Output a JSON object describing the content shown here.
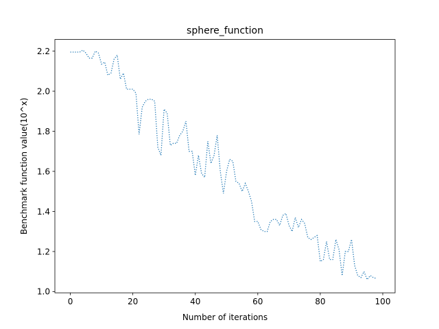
{
  "chart_data": {
    "type": "line",
    "title": "sphere_function",
    "xlabel": "Number of iterations",
    "ylabel": "Benchmark function value(10^x)",
    "xlim": [
      -4.95,
      103.95
    ],
    "ylim": [
      0.994,
      2.258
    ],
    "xticks": [
      0,
      20,
      40,
      60,
      80,
      100
    ],
    "yticks": [
      1.0,
      1.2,
      1.4,
      1.6,
      1.8,
      2.0,
      2.2
    ],
    "ytick_labels": [
      "1.0",
      "1.2",
      "1.4",
      "1.6",
      "1.8",
      "2.0",
      "2.2"
    ],
    "grid": false,
    "legend": "none",
    "line_style": "dotted",
    "color": "#1f77b4",
    "series": [
      {
        "x": [
          0,
          1,
          2,
          3,
          4,
          5,
          6,
          7,
          8,
          9,
          10,
          11,
          12,
          13,
          14,
          15,
          16,
          17,
          18,
          19,
          20,
          21,
          22,
          23,
          24,
          25,
          26,
          27,
          28,
          29,
          30,
          31,
          32,
          33,
          34,
          35,
          36,
          37,
          38,
          39,
          40,
          41,
          42,
          43,
          44,
          45,
          46,
          47,
          48,
          49,
          50,
          51,
          52,
          53,
          54,
          55,
          56,
          57,
          58,
          59,
          60,
          61,
          62,
          63,
          64,
          65,
          66,
          67,
          68,
          69,
          70,
          71,
          72,
          73,
          74,
          75,
          76,
          77,
          78,
          79,
          80,
          81,
          82,
          83,
          84,
          85,
          86,
          87,
          88,
          89,
          90,
          91,
          92,
          93,
          94,
          95,
          96,
          97,
          98
        ],
        "values": [
          2.195,
          2.195,
          2.195,
          2.195,
          2.205,
          2.19,
          2.165,
          2.165,
          2.2,
          2.19,
          2.135,
          2.145,
          2.08,
          2.09,
          2.16,
          2.18,
          2.06,
          2.09,
          2.01,
          2.01,
          2.01,
          1.99,
          1.785,
          1.92,
          1.95,
          1.96,
          1.96,
          1.95,
          1.72,
          1.68,
          1.91,
          1.89,
          1.73,
          1.74,
          1.74,
          1.78,
          1.8,
          1.85,
          1.7,
          1.7,
          1.58,
          1.68,
          1.59,
          1.57,
          1.75,
          1.64,
          1.68,
          1.78,
          1.6,
          1.49,
          1.6,
          1.66,
          1.65,
          1.55,
          1.54,
          1.5,
          1.54,
          1.5,
          1.45,
          1.35,
          1.35,
          1.31,
          1.3,
          1.3,
          1.35,
          1.36,
          1.36,
          1.33,
          1.38,
          1.39,
          1.33,
          1.3,
          1.37,
          1.32,
          1.36,
          1.34,
          1.27,
          1.26,
          1.27,
          1.28,
          1.15,
          1.16,
          1.25,
          1.16,
          1.16,
          1.26,
          1.21,
          1.08,
          1.2,
          1.2,
          1.26,
          1.13,
          1.08,
          1.07,
          1.1,
          1.06,
          1.08,
          1.07,
          1.065
        ]
      }
    ]
  }
}
